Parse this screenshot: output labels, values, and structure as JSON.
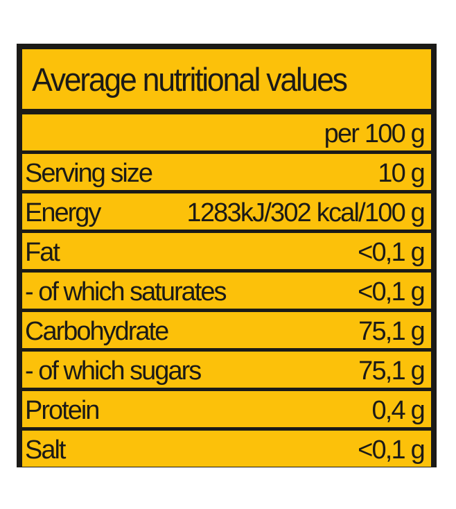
{
  "title": "Average nutritional values",
  "column_header": "per 100 g",
  "rows": [
    {
      "name": "Serving size",
      "value": "10 g"
    },
    {
      "name": "Energy",
      "value": "1283kJ/302 kcal/100 g"
    },
    {
      "name": "Fat",
      "value": "<0,1 g"
    },
    {
      "name": "- of which saturates",
      "value": "<0,1 g"
    },
    {
      "name": "Carbohydrate",
      "value": "75,1 g"
    },
    {
      "name": "- of which sugars",
      "value": "75,1 g"
    },
    {
      "name": "Protein",
      "value": "0,4 g"
    },
    {
      "name": "Salt",
      "value": "<0,1 g"
    }
  ],
  "colors": {
    "background": "#fcc10a",
    "border": "#1b1a17",
    "text": "#1b1a17"
  }
}
